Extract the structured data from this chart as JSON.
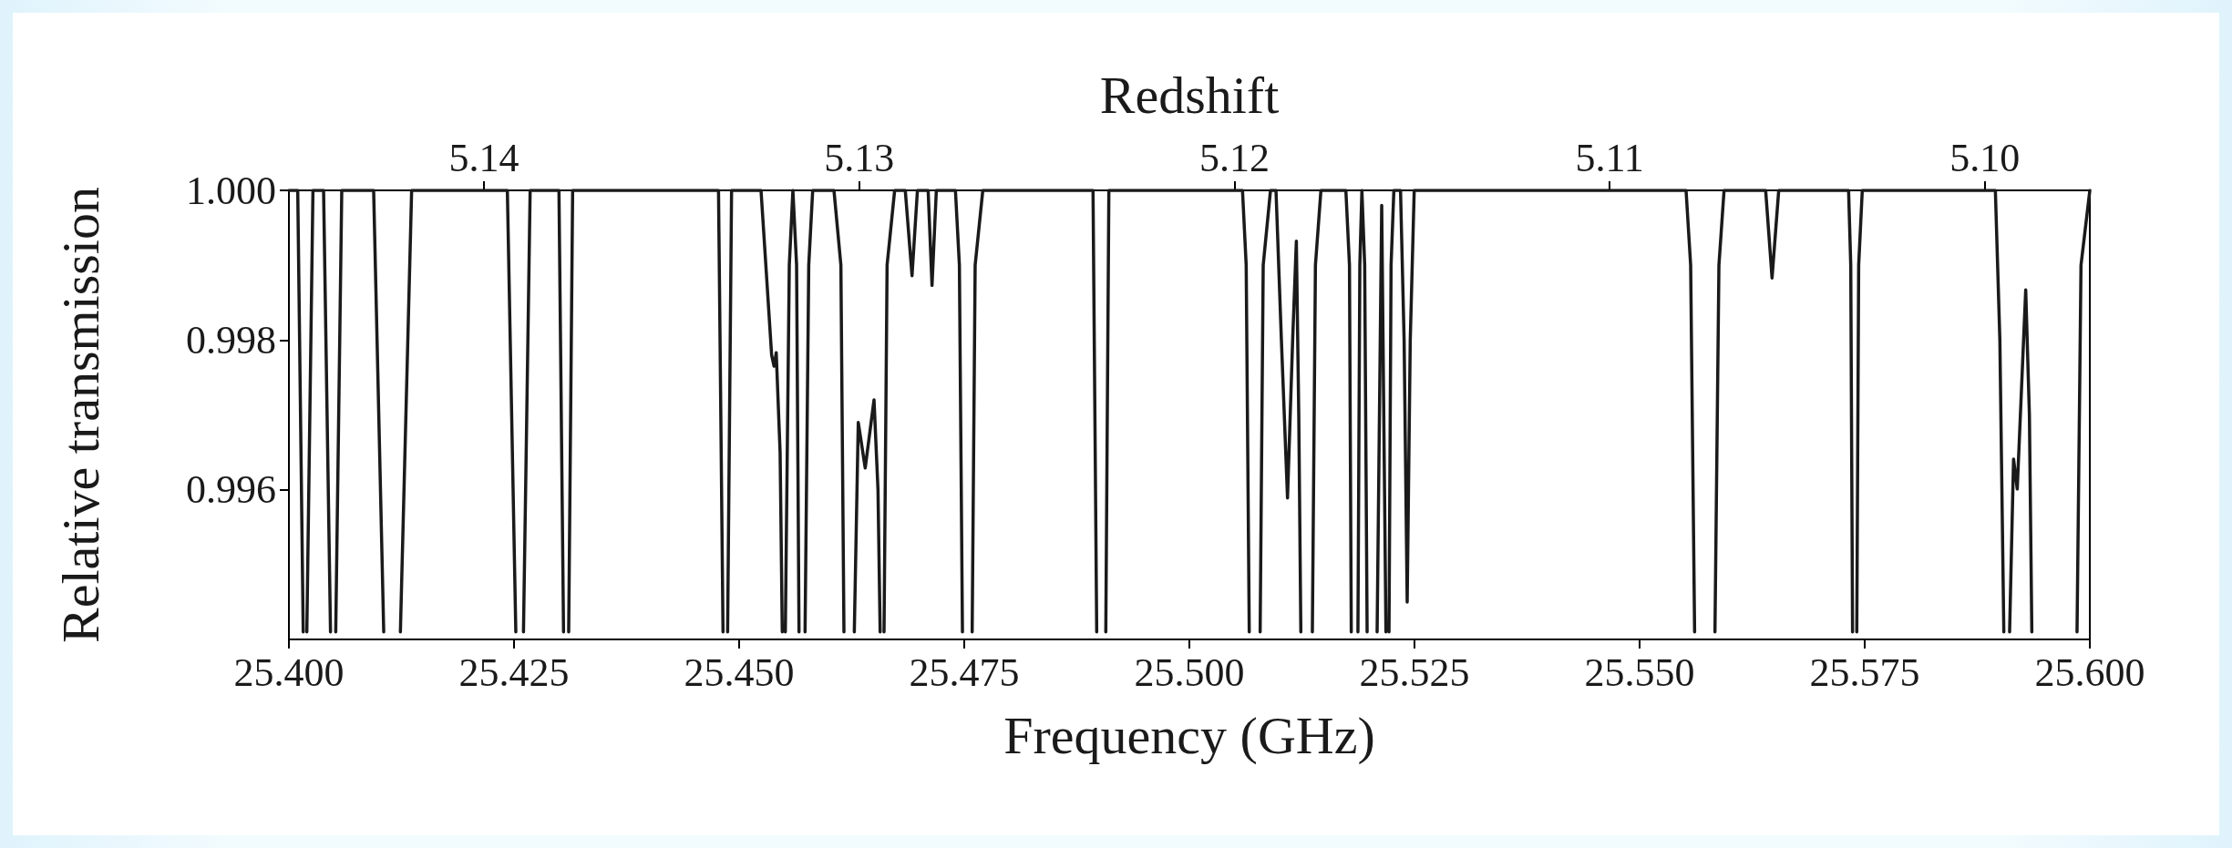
{
  "chart_data": {
    "type": "line",
    "xlabel": "Frequency (GHz)",
    "ylabel": "Relative transmission",
    "x2label": "Redshift",
    "xlim": [
      25.4,
      25.6
    ],
    "xticks": [
      {
        "value": 25.4,
        "label": "25.400"
      },
      {
        "value": 25.425,
        "label": "25.425"
      },
      {
        "value": 25.45,
        "label": "25.450"
      },
      {
        "value": 25.475,
        "label": "25.475"
      },
      {
        "value": 25.5,
        "label": "25.500"
      },
      {
        "value": 25.525,
        "label": "25.525"
      },
      {
        "value": 25.55,
        "label": "25.550"
      },
      {
        "value": 25.575,
        "label": "25.575"
      },
      {
        "value": 25.6,
        "label": "25.600"
      }
    ],
    "x2lim": [
      5.1452,
      5.0972
    ],
    "x2ticks": [
      5.14,
      5.13,
      5.12,
      5.11,
      {
        "value": 5.1,
        "label": "5.10"
      }
    ],
    "ylim": [
      0.994,
      1.0
    ],
    "yticks": [
      {
        "value": 0.996,
        "label": "0.996"
      },
      {
        "value": 0.998,
        "label": "0.998"
      },
      {
        "value": 1.0,
        "label": "1.000"
      }
    ],
    "grid": false,
    "marker": "none",
    "line_style": "solid",
    "series": [
      {
        "color": "#1a1a1a",
        "x": [
          25.4,
          25.40098,
          25.40159,
          25.4018,
          25.40199,
          25.40267,
          25.40385,
          25.40462,
          25.4049,
          25.4052,
          25.40587,
          25.40941,
          25.41053,
          25.4115,
          25.41238,
          25.41363,
          25.42426,
          25.4252,
          25.4256,
          25.42605,
          25.42679,
          25.42999,
          25.4305,
          25.4308,
          25.43107,
          25.43151,
          25.44771,
          25.44821,
          25.4485,
          25.44872,
          25.44916,
          25.45243,
          25.45361,
          25.45388,
          25.45412,
          25.45455,
          25.45479,
          25.455,
          25.45513,
          25.45557,
          25.45597,
          25.45638,
          25.45665,
          25.457,
          25.45732,
          25.45773,
          25.45817,
          25.46053,
          25.4613,
          25.46164,
          25.4622,
          25.46279,
          25.46323,
          25.464,
          25.46498,
          25.46542,
          25.46566,
          25.4659,
          25.46609,
          25.46643,
          25.46727,
          25.46845,
          25.4692,
          25.4698,
          25.47099,
          25.47142,
          25.4719,
          25.47402,
          25.47446,
          25.4748,
          25.4753,
          25.47588,
          25.47621,
          25.47706,
          25.4893,
          25.48971,
          25.4902,
          25.49072,
          25.49106,
          25.5059,
          25.50631,
          25.50665,
          25.5072,
          25.50786,
          25.5082,
          25.50901,
          25.50962,
          25.51022,
          25.5109,
          25.51147,
          25.51188,
          25.51215,
          25.51238,
          25.513,
          25.51366,
          25.514,
          25.51461,
          25.51738,
          25.51778,
          25.51798,
          25.5183,
          25.51872,
          25.51893,
          25.51916,
          25.51947,
          25.51974,
          25.5203,
          25.52085,
          25.52136,
          25.52183,
          25.522,
          25.52217,
          25.5224,
          25.52271,
          25.52345,
          25.52385,
          25.52419,
          25.52453,
          25.52497,
          25.55516,
          25.55567,
          25.55611,
          25.5572,
          25.55837,
          25.55881,
          25.55938,
          25.564,
          25.56471,
          25.56545,
          25.57321,
          25.57345,
          25.57365,
          25.5739,
          25.57412,
          25.57433,
          25.57473,
          25.58951,
          25.59001,
          25.59045,
          25.5908,
          25.59109,
          25.59153,
          25.59194,
          25.59288,
          25.59329,
          25.59356,
          25.596,
          25.59858,
          25.59902,
          25.6
        ],
        "values": [
          1,
          1,
          0.9941,
          null,
          0.9941,
          1,
          1,
          0.9941,
          null,
          0.9941,
          1,
          1,
          0.9941,
          null,
          0.9941,
          1,
          1,
          0.9941,
          null,
          0.9941,
          1,
          1,
          0.9941,
          null,
          0.9941,
          1,
          1,
          0.9941,
          null,
          0.9941,
          1,
          1,
          0.9978,
          0.99765,
          0.99783,
          0.9965,
          0.9941,
          null,
          0.9941,
          0.999,
          1,
          0.999,
          0.9941,
          null,
          0.9941,
          0.999,
          1,
          1,
          0.999,
          0.9941,
          null,
          0.9941,
          0.9969,
          0.99629,
          0.9972,
          0.996,
          0.9941,
          null,
          0.9941,
          0.999,
          1,
          1,
          0.99886,
          1,
          1,
          0.99873,
          1,
          1,
          0.999,
          0.9941,
          null,
          0.9941,
          0.999,
          1,
          1,
          0.9941,
          null,
          0.9941,
          1,
          1,
          0.999,
          0.9941,
          null,
          0.9941,
          0.999,
          1,
          1,
          0.998,
          0.99589,
          0.998,
          0.99932,
          0.997,
          0.9941,
          null,
          0.9941,
          0.999,
          1,
          1,
          0.999,
          0.9941,
          null,
          0.9941,
          0.999,
          1,
          0.999,
          0.9941,
          null,
          0.9941,
          0.9998,
          0.9941,
          null,
          0.9941,
          0.999,
          1,
          1,
          0.998,
          0.9945,
          0.998,
          1,
          1,
          0.999,
          0.9941,
          null,
          0.9941,
          0.999,
          1,
          1,
          0.99883,
          1,
          1,
          0.999,
          0.9941,
          null,
          0.9941,
          0.999,
          1,
          1,
          0.998,
          0.9941,
          null,
          0.9941,
          0.99641,
          0.99601,
          0.99867,
          0.997,
          0.9941,
          null,
          0.9941,
          0.999,
          1
        ]
      }
    ]
  }
}
